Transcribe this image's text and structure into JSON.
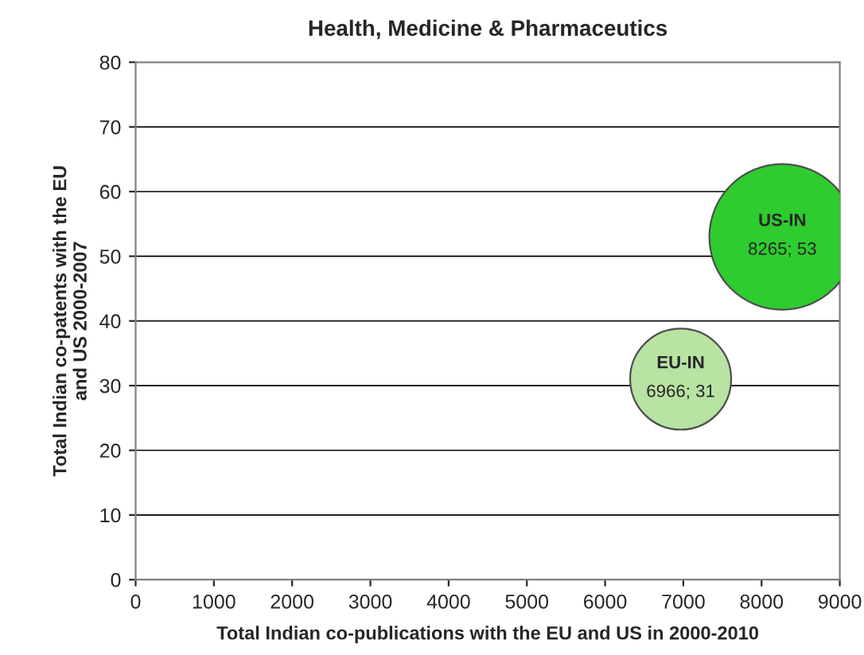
{
  "chart_data": {
    "type": "bubble",
    "title": "Health, Medicine & Pharmaceutics",
    "xlabel": "Total Indian co-publications with the EU and US in 2000-2010",
    "ylabel": "Total Indian co-patents with the EU\nand US 2000-2007",
    "series": [
      {
        "name": "EU-IN",
        "color": "#b8e3a3",
        "x": [
          6966
        ],
        "values": [
          31
        ],
        "sizes": [
          0.48
        ],
        "value_labels": [
          "6966; 31"
        ]
      },
      {
        "name": "US-IN",
        "color": "#2ecc2e",
        "x": [
          8265
        ],
        "values": [
          53
        ],
        "sizes": [
          1
        ],
        "value_labels": [
          "8265; 53"
        ]
      }
    ],
    "xlim": [
      0,
      9000
    ],
    "xticks": [
      0,
      1000,
      2000,
      3000,
      4000,
      5000,
      6000,
      7000,
      8000,
      9000
    ],
    "ylim": [
      0,
      80
    ],
    "yticks": [
      0,
      10,
      20,
      30,
      40,
      50,
      60,
      70,
      80
    ],
    "grid": "y",
    "legend": false
  }
}
